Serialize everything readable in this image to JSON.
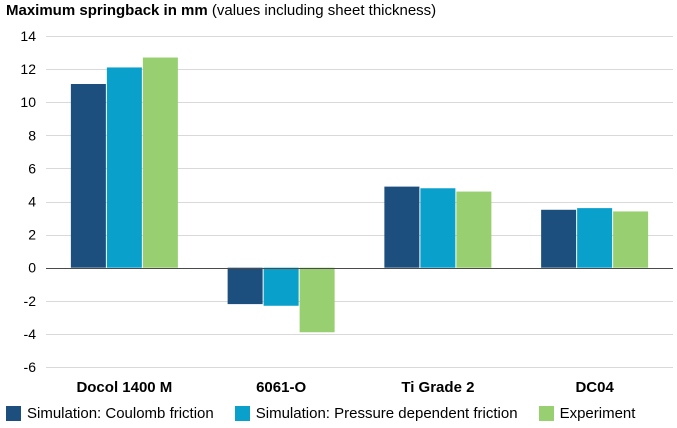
{
  "chart_data": {
    "type": "bar",
    "title": "Maximum springback in mm",
    "subtitle": "(values including sheet thickness)",
    "xlabel": "",
    "ylabel": "",
    "categories": [
      "Docol 1400 M",
      "6061-O",
      "Ti Grade 2",
      "DC04"
    ],
    "series": [
      {
        "name": "Simulation: Coulomb friction",
        "color": "#1c4e7e",
        "values": [
          11.1,
          -2.2,
          4.9,
          3.5
        ]
      },
      {
        "name": "Simulation: Pressure dependent friction",
        "color": "#0aa0cc",
        "values": [
          12.1,
          -2.3,
          4.8,
          3.6
        ]
      },
      {
        "name": "Experiment",
        "color": "#98cf70",
        "values": [
          12.7,
          -3.9,
          4.6,
          3.4
        ]
      }
    ],
    "ylim": [
      -6,
      14
    ],
    "yticks": [
      "14",
      "12",
      "10",
      "8",
      "6",
      "4",
      "2",
      "0",
      "-2",
      "-4",
      "-6"
    ],
    "grid": true,
    "legend_position": "bottom"
  }
}
